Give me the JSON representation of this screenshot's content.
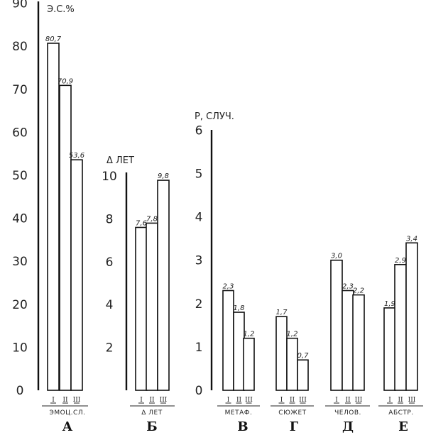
{
  "chart_data": [
    {
      "type": "bar",
      "letter": "А",
      "unit": "Э.С.%",
      "ticks": [
        "0",
        "10",
        "20",
        "30",
        "40",
        "50",
        "60",
        "70",
        "80",
        "90"
      ],
      "ylim": [
        0,
        90
      ],
      "category": "ЭМОЦ.СЛ.",
      "bar_labels": [
        "I",
        "II",
        "III"
      ],
      "values": [
        80.7,
        70.9,
        53.6
      ],
      "value_labels": [
        "80,7",
        "70,9",
        "53,6"
      ]
    },
    {
      "type": "bar",
      "letter": "Б",
      "unit": "Δ ЛЕТ",
      "ticks": [
        "2",
        "4",
        "6",
        "8",
        "10"
      ],
      "ylim": [
        0,
        10
      ],
      "category": "Δ ЛЕТ",
      "bar_labels": [
        "I",
        "II",
        "III"
      ],
      "values": [
        7.6,
        7.8,
        9.8
      ],
      "value_labels": [
        "7,6",
        "7,8",
        "9,8"
      ]
    },
    {
      "type": "bar",
      "unit": "Р, СЛУЧ.",
      "ticks": [
        "0",
        "1",
        "2",
        "3",
        "4",
        "5",
        "6"
      ],
      "ylim": [
        0,
        6
      ],
      "groups": [
        {
          "letter": "В",
          "category": "МЕТАФ.",
          "bar_labels": [
            "I",
            "II",
            "III"
          ],
          "values": [
            2.3,
            1.8,
            1.2
          ],
          "value_labels": [
            "2,3",
            "1,8",
            "1,2"
          ]
        },
        {
          "letter": "Г",
          "category": "СЮЖЕТ",
          "bar_labels": [
            "I",
            "II",
            "III"
          ],
          "values": [
            1.7,
            1.2,
            0.7
          ],
          "value_labels": [
            "1,7",
            "1,2",
            "0,7"
          ]
        },
        {
          "letter": "Д",
          "category": "ЧЕЛОВ.",
          "bar_labels": [
            "I",
            "II",
            "III"
          ],
          "values": [
            3.0,
            2.3,
            2.2
          ],
          "value_labels": [
            "3,0",
            "2,3",
            "2,2"
          ]
        },
        {
          "letter": "Е",
          "category": "АБСТР.",
          "bar_labels": [
            "I",
            "II",
            "III"
          ],
          "values": [
            1.9,
            2.9,
            3.4
          ],
          "value_labels": [
            "1,9",
            "2,9",
            "3,4"
          ]
        }
      ]
    }
  ]
}
